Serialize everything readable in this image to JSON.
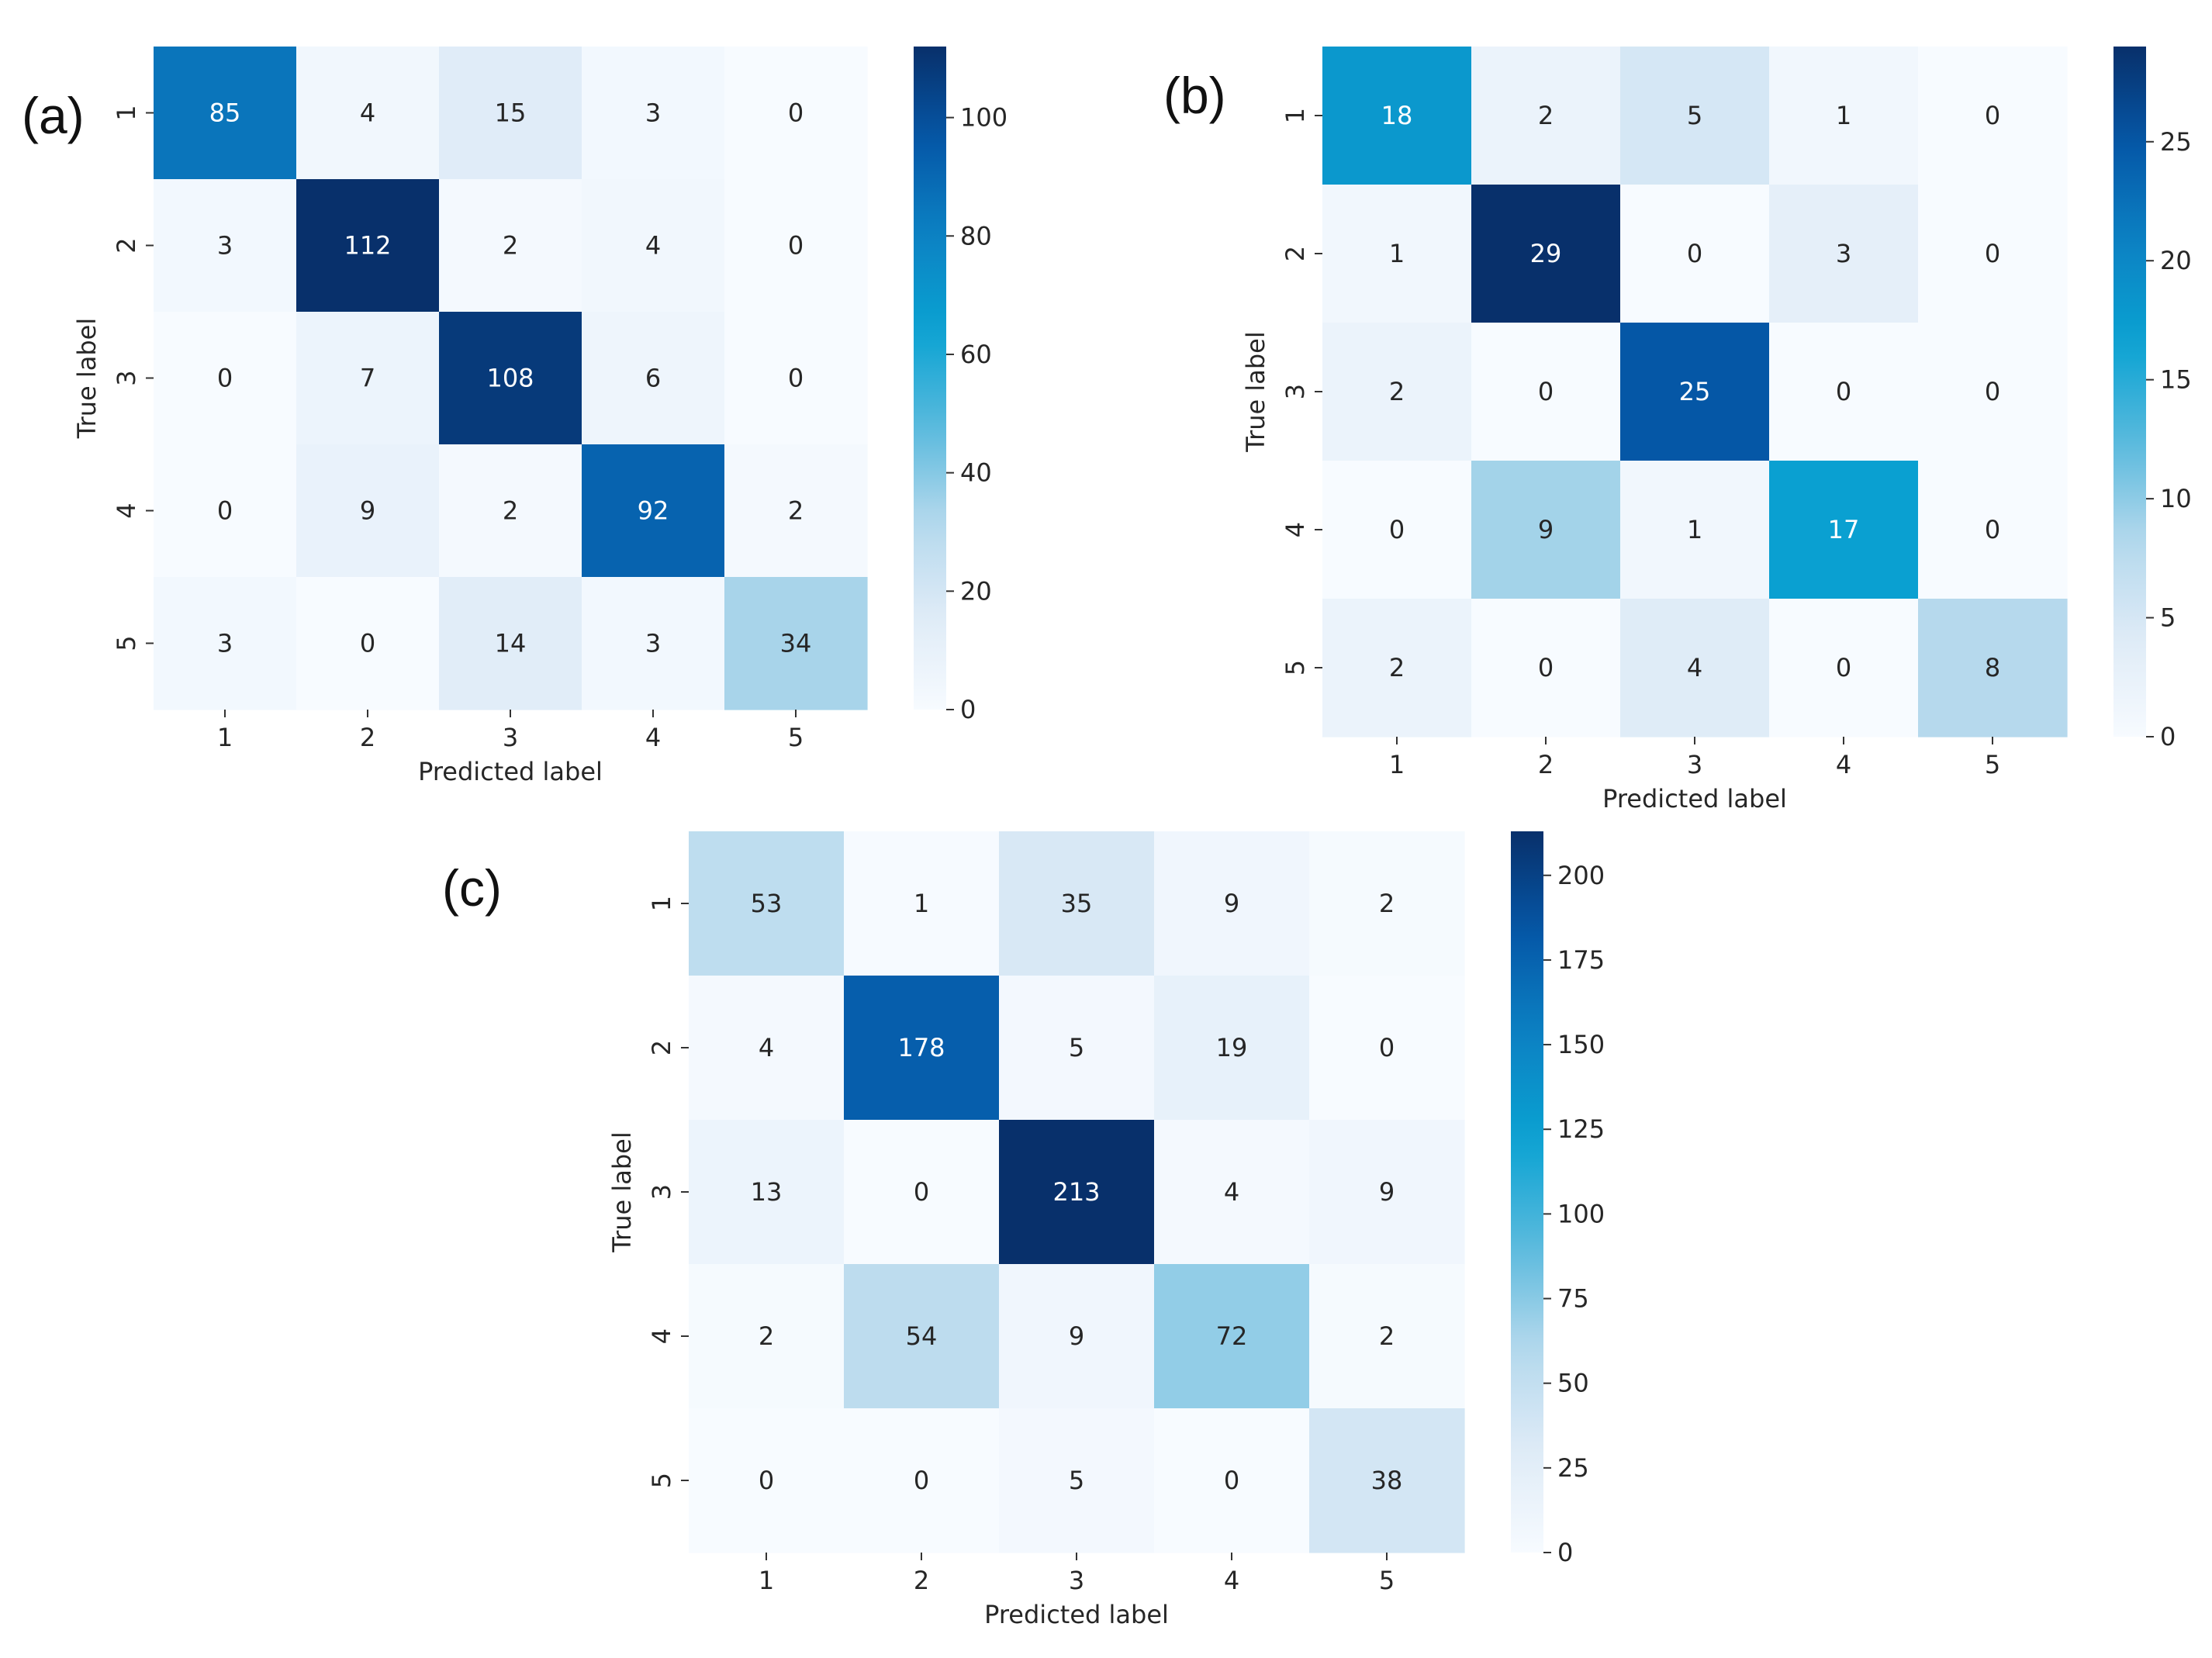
{
  "figure": {
    "panels": [
      "a",
      "b",
      "c"
    ]
  },
  "colormap": {
    "name": "Blues-like (white to light blue to cyan to navy)",
    "stops": [
      "#f7fbff",
      "#deebf7",
      "#b3d8ec",
      "#58b9dd",
      "#0aa3d2",
      "#0c82c4",
      "#0558a8",
      "#08306b"
    ]
  },
  "chart_data": [
    {
      "type": "heatmap",
      "panel_label": "(a)",
      "title": "",
      "xlabel": "Predicted label",
      "ylabel": "True label",
      "x_categories": [
        "1",
        "2",
        "3",
        "4",
        "5"
      ],
      "y_categories": [
        "1",
        "2",
        "3",
        "4",
        "5"
      ],
      "matrix": [
        [
          85,
          4,
          15,
          3,
          0
        ],
        [
          3,
          112,
          2,
          4,
          0
        ],
        [
          0,
          7,
          108,
          6,
          0
        ],
        [
          0,
          9,
          2,
          92,
          2
        ],
        [
          3,
          0,
          14,
          3,
          34
        ]
      ],
      "color_range": [
        0,
        112
      ],
      "colorbar_ticks": [
        0,
        20,
        40,
        60,
        80,
        100
      ]
    },
    {
      "type": "heatmap",
      "panel_label": "(b)",
      "title": "",
      "xlabel": "Predicted label",
      "ylabel": "True label",
      "x_categories": [
        "1",
        "2",
        "3",
        "4",
        "5"
      ],
      "y_categories": [
        "1",
        "2",
        "3",
        "4",
        "5"
      ],
      "matrix": [
        [
          18,
          2,
          5,
          1,
          0
        ],
        [
          1,
          29,
          0,
          3,
          0
        ],
        [
          2,
          0,
          25,
          0,
          0
        ],
        [
          0,
          9,
          1,
          17,
          0
        ],
        [
          2,
          0,
          4,
          0,
          8
        ]
      ],
      "color_range": [
        0,
        29
      ],
      "colorbar_ticks": [
        0,
        5,
        10,
        15,
        20,
        25
      ]
    },
    {
      "type": "heatmap",
      "panel_label": "(c)",
      "title": "",
      "xlabel": "Predicted label",
      "ylabel": "True label",
      "x_categories": [
        "1",
        "2",
        "3",
        "4",
        "5"
      ],
      "y_categories": [
        "1",
        "2",
        "3",
        "4",
        "5"
      ],
      "matrix": [
        [
          53,
          1,
          35,
          9,
          2
        ],
        [
          4,
          178,
          5,
          19,
          0
        ],
        [
          13,
          0,
          213,
          4,
          9
        ],
        [
          2,
          54,
          9,
          72,
          2
        ],
        [
          0,
          0,
          5,
          0,
          38
        ]
      ],
      "color_range": [
        0,
        213
      ],
      "colorbar_ticks": [
        0,
        25,
        50,
        75,
        100,
        125,
        150,
        175,
        200
      ]
    }
  ]
}
